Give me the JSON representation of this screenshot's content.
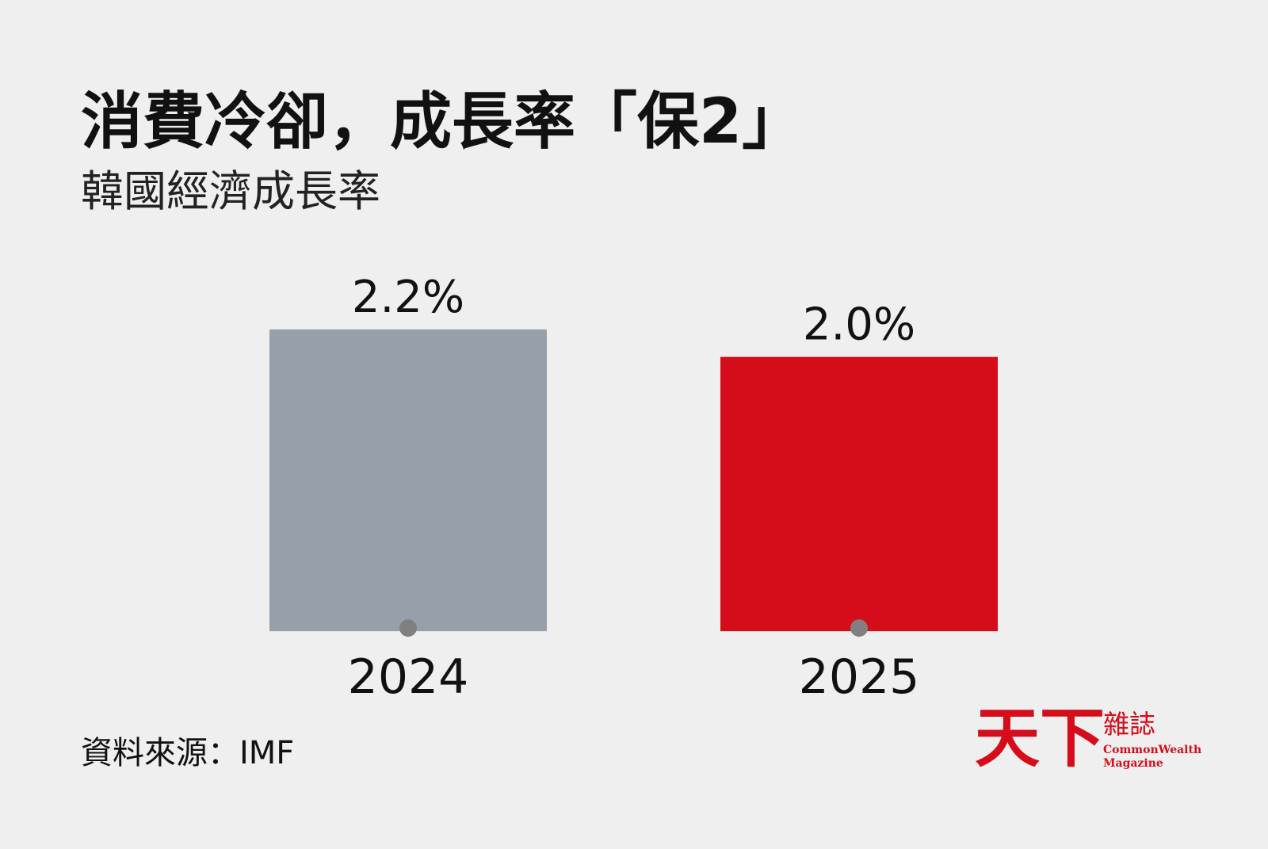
{
  "chart_data": {
    "type": "bar",
    "title": "消費冷卻，成長率「保2」",
    "subtitle": "韓國經濟成長率",
    "categories": [
      "2024",
      "2025"
    ],
    "values": [
      2.2,
      2.0
    ],
    "value_labels": [
      "2.2%",
      "2.0%"
    ],
    "colors": [
      "#97a0aa",
      "#d50c1a"
    ],
    "source": "資料來源：IMF"
  },
  "logo": {
    "name": "天下",
    "sub": "雜誌",
    "english_1": "CommonWealth",
    "english_2": "Magazine"
  }
}
